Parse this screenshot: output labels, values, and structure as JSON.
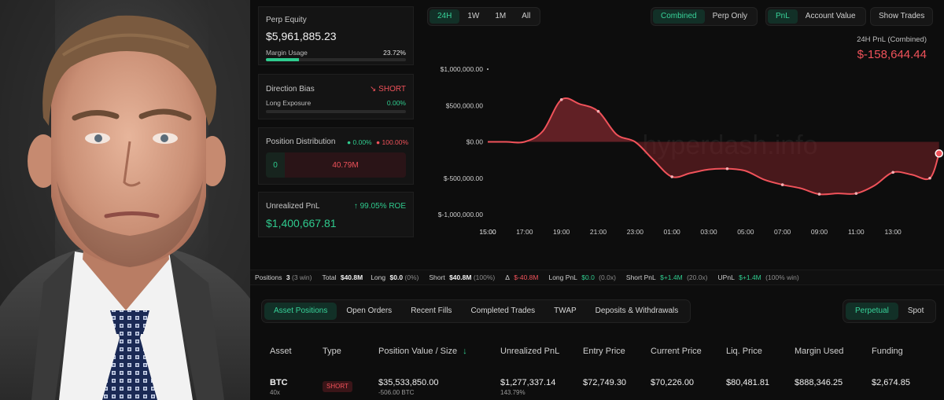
{
  "summary": {
    "perp_equity_label": "Perp Equity",
    "perp_equity_value": "$5,961,885.23",
    "margin_usage_label": "Margin Usage",
    "margin_usage_value": "23.72%",
    "margin_usage_fraction": 0.2372,
    "direction_bias_label": "Direction Bias",
    "direction_bias_value": "SHORT",
    "long_exposure_label": "Long Exposure",
    "long_exposure_value": "0.00%",
    "position_distribution_label": "Position Distribution",
    "dist_long_pct": "0.00%",
    "dist_short_pct": "100.00%",
    "dist_long_amount": "0",
    "dist_short_amount": "40.79M",
    "unrealized_pnl_label": "Unrealized PnL",
    "unrealized_roe": "99.05% ROE",
    "unrealized_pnl_value": "$1,400,667.81"
  },
  "timeframe": {
    "options": [
      "24H",
      "1W",
      "1M",
      "All"
    ],
    "selected": "24H"
  },
  "mode": {
    "options": [
      "Combined",
      "Perp Only"
    ],
    "selected": "Combined"
  },
  "metric": {
    "options": [
      "PnL",
      "Account Value"
    ],
    "selected": "PnL"
  },
  "show_trades_label": "Show Trades",
  "pnl_header": {
    "label": "24H PnL (Combined)",
    "value": "$-158,644.44"
  },
  "watermark": "hyperdash.info",
  "colors": {
    "accent_green": "#2fcb8e",
    "accent_red": "#f0525a",
    "bg": "#0d0d0d"
  },
  "chart_data": {
    "type": "area",
    "title": "24H PnL (Combined)",
    "x": [
      "15:00",
      "16:00",
      "17:00",
      "18:00",
      "19:00",
      "20:00",
      "21:00",
      "22:00",
      "23:00",
      "00:00",
      "01:00",
      "02:00",
      "03:00",
      "04:00",
      "05:00",
      "06:00",
      "07:00",
      "08:00",
      "09:00",
      "10:00",
      "11:00",
      "12:00",
      "13:00",
      "14:00",
      "15:00",
      "15:30"
    ],
    "values": [
      0,
      0,
      0,
      150000,
      580000,
      520000,
      420000,
      100000,
      0,
      -250000,
      -480000,
      -430000,
      -380000,
      -370000,
      -400000,
      -520000,
      -590000,
      -640000,
      -720000,
      -710000,
      -710000,
      -600000,
      -420000,
      -450000,
      -500000,
      -160000
    ],
    "x_ticks": [
      "15:00",
      "17:00",
      "19:00",
      "21:00",
      "23:00",
      "01:00",
      "03:00",
      "05:00",
      "07:00",
      "09:00",
      "11:00",
      "13:00",
      "15:00"
    ],
    "y_ticks": [
      1000000,
      500000,
      0,
      -500000,
      -1000000
    ],
    "y_tick_labels": [
      "$1,000,000.00",
      "$500,000.00",
      "$0.00",
      "$-500,000.00",
      "$-1,000,000.00"
    ],
    "ylim": [
      -1000000,
      1000000
    ]
  },
  "stats_bar": {
    "positions_label": "Positions",
    "positions_count": "3",
    "positions_win": "(3 win)",
    "total_label": "Total",
    "total_value": "$40.8M",
    "long_label": "Long",
    "long_value": "$0.0",
    "long_pct": "(0%)",
    "short_label": "Short",
    "short_value": "$40.8M",
    "short_pct": "(100%)",
    "delta_symbol": "Δ",
    "delta_value": "$-40.8M",
    "long_pnl_label": "Long PnL",
    "long_pnl_value": "$0.0",
    "long_pnl_x": "(0.0x)",
    "short_pnl_label": "Short PnL",
    "short_pnl_value": "$+1.4M",
    "short_pnl_x": "(20.0x)",
    "upnl_label": "UPnL",
    "upnl_value": "$+1.4M",
    "upnl_win": "(100% win)"
  },
  "tabs": [
    "Asset Positions",
    "Open Orders",
    "Recent Fills",
    "Completed Trades",
    "TWAP",
    "Deposits & Withdrawals"
  ],
  "market_toggle": [
    "Perpetual",
    "Spot"
  ],
  "table": {
    "headers": [
      "Asset",
      "Type",
      "Position Value / Size",
      "Unrealized PnL",
      "Entry Price",
      "Current Price",
      "Liq. Price",
      "Margin Used",
      "Funding"
    ],
    "rows": [
      {
        "asset": "BTC",
        "leverage": "40x",
        "type": "SHORT",
        "position_value": "$35,533,850.00",
        "size": "-506.00 BTC",
        "unrealized_pnl": "$1,277,337.14",
        "unrealized_pct": "143.79%",
        "entry_price": "$72,749.30",
        "current_price": "$70,226.00",
        "liq_price": "$80,481.81",
        "margin_used": "$888,346.25",
        "funding": "$2,674.85"
      }
    ]
  }
}
